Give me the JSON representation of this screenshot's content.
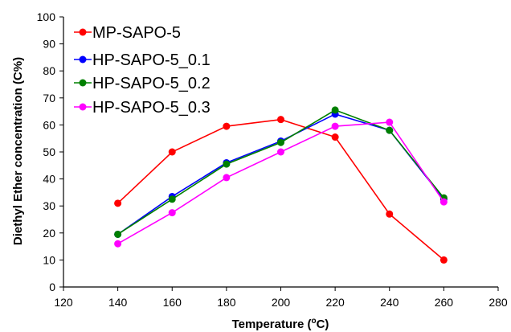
{
  "chart_data": {
    "type": "line",
    "xlabel": "Temperature (",
    "xlabel_sup": "o",
    "xlabel_tail": "C)",
    "ylabel": "Diethyl Ether concentration (C%)",
    "xlim": [
      120,
      280
    ],
    "ylim": [
      0,
      100
    ],
    "xticks": [
      120,
      140,
      160,
      180,
      200,
      220,
      240,
      260,
      280
    ],
    "yticks": [
      0,
      10,
      20,
      30,
      40,
      50,
      60,
      70,
      80,
      90,
      100
    ],
    "grid": false,
    "legend_position": "top-left",
    "x": [
      140,
      160,
      180,
      200,
      220,
      240,
      260
    ],
    "series": [
      {
        "name": "MP-SAPO-5",
        "color": "#ff0000",
        "values": [
          31,
          50,
          59.5,
          62,
          55.5,
          27,
          10
        ]
      },
      {
        "name": "HP-SAPO-5_0.1",
        "color": "#0000ff",
        "values": [
          19.5,
          33.5,
          46,
          54,
          64,
          58,
          32.5
        ]
      },
      {
        "name": "HP-SAPO-5_0.2",
        "color": "#008000",
        "values": [
          19.5,
          32.5,
          45.5,
          53.5,
          65.5,
          58,
          33
        ]
      },
      {
        "name": "HP-SAPO-5_0.3",
        "color": "#ff00ff",
        "values": [
          16,
          27.5,
          40.5,
          50,
          59.5,
          61,
          31.5
        ]
      }
    ]
  }
}
